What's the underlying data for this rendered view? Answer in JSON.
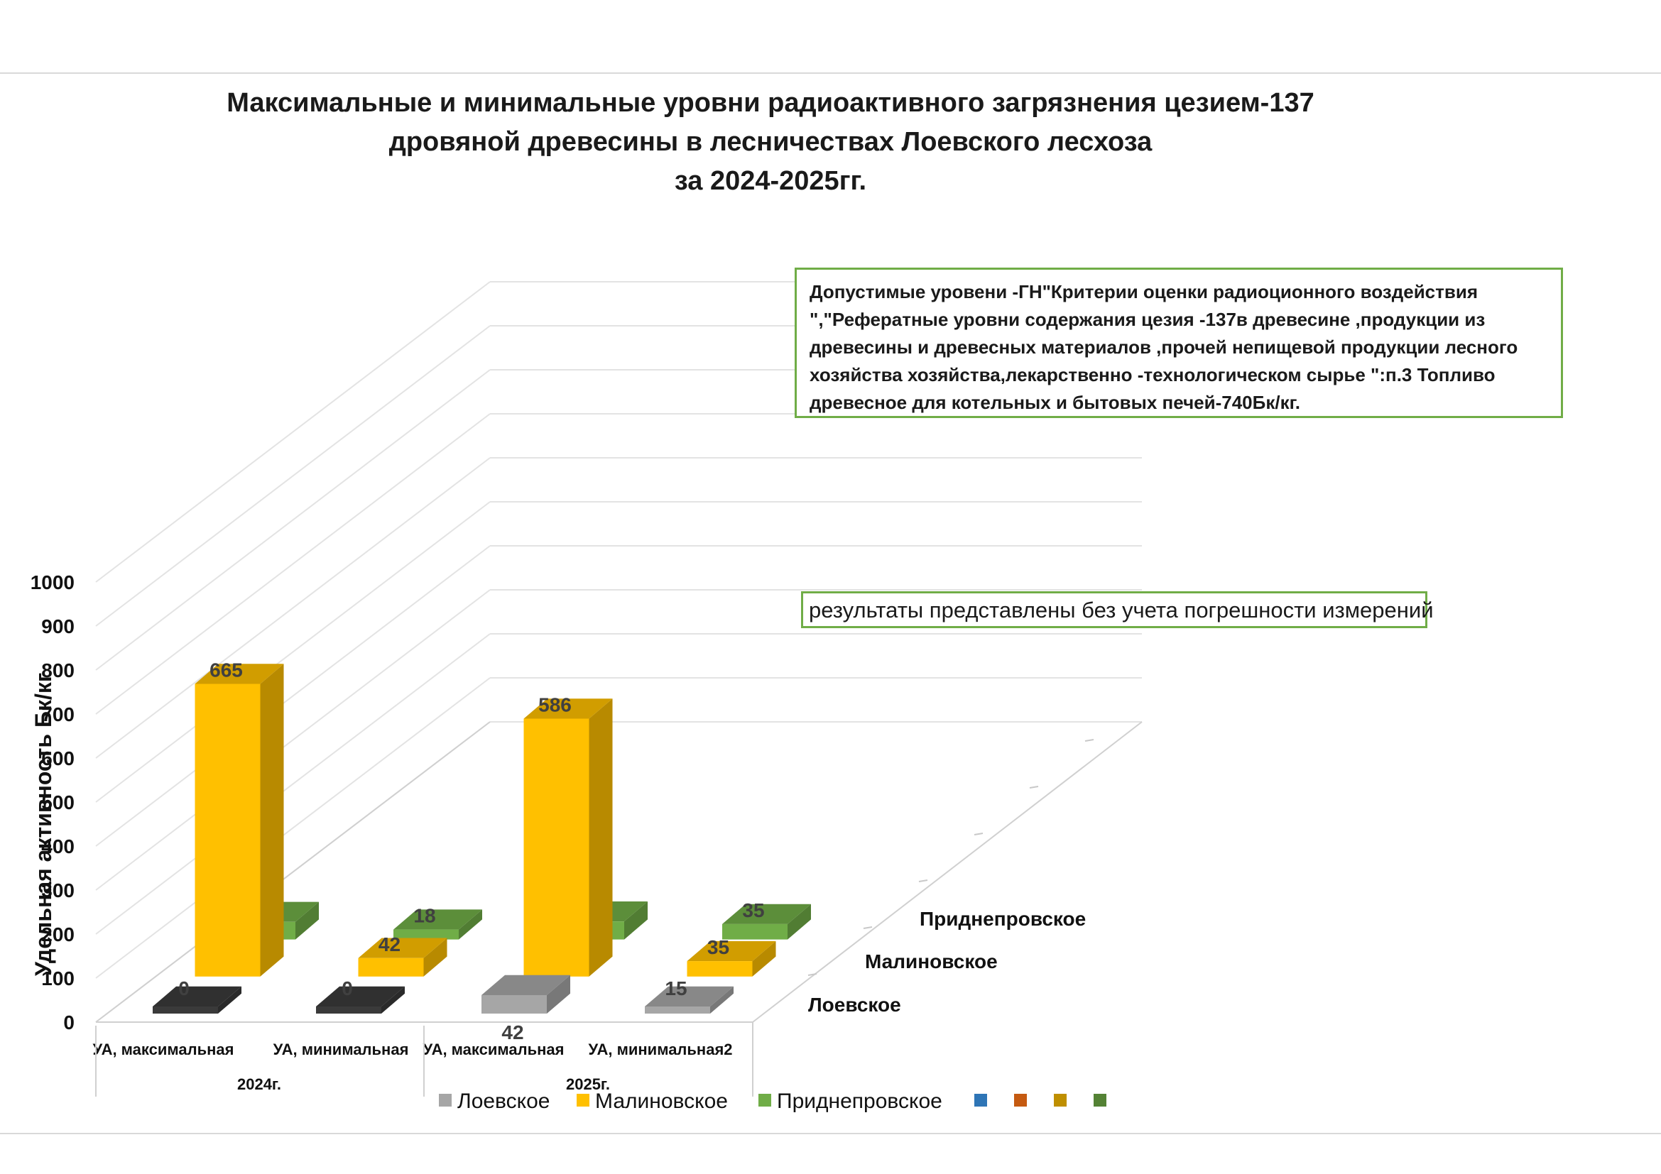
{
  "title_lines": [
    "Максимальные и минимальные уровни радиоактивного загрязнения цезием-137",
    "дровяной древесины в лесничествах Лоевского лесхоза",
    "за 2024-2025гг."
  ],
  "note": "Допустимые  уровени -ГН\"Критерии оценки радиоционного  воздействия \",\"Реферат­ные уровни содержания цезия -137в древесине ,продукции из древесины и древесных материалов ,прочей непищевой продукции лесного хозяйства хозяйства,лекарственно -технологическом сырье \":п.3 Топливо древесное для котельных и бытовых печей-740Бк/кг.",
  "note_lines": [
    "Допустимые  уровени -ГН\"Критерии оценки радиоционного  воздействия",
    "\",\"Реферат­ные уровни содержания цезия -137в древесине ,продукции из",
    "древесины и древесных материалов ,прочей непищевой продукции лесного",
    "хозяйства хозяйства,лекарственно -технологическом сырье \":п.3 Топливо",
    "древесное для котельных и бытовых печей-740Бк/кг."
  ],
  "results_note": "результаты представлены без учета погрешности измерений",
  "chart_data": {
    "type": "bar",
    "subtype": "3d-column",
    "ylabel": "Удельная активность Бк/кг",
    "ylim": [
      0,
      1000
    ],
    "yticks": [
      "0",
      "100",
      "200",
      "300",
      "400",
      "500",
      "600",
      "700",
      "800",
      "900",
      "1000"
    ],
    "groups": [
      "2024г.",
      "2025г."
    ],
    "categories": [
      "УА, максимальная",
      "УА, минимальная",
      "УА, максимальная",
      "УА, минимальная2"
    ],
    "series_axis_labels": [
      "Лоевское",
      "Малиновское",
      "Приднепровское"
    ],
    "series": [
      {
        "name": "Лоевское",
        "values": [
          0,
          0,
          42,
          15
        ],
        "colors": [
          "#3a3a3a",
          "#3a3a3a",
          "#a6a6a6",
          "#a6a6a6"
        ]
      },
      {
        "name": "Малиновское",
        "values": [
          665,
          42,
          586,
          35
        ],
        "color": "#ffc000"
      },
      {
        "name": "Приднепровское",
        "values": [
          40,
          18,
          41,
          35
        ],
        "color": "#70ad47"
      }
    ],
    "data_labels": [
      [
        "0",
        "0",
        "42",
        "15"
      ],
      [
        "665",
        "42",
        "586",
        "35"
      ],
      [
        "40",
        "18",
        "41",
        "35"
      ]
    ],
    "legend": {
      "position": "bottom",
      "entries": [
        "Лоевское",
        "Малиновское",
        "Приднепровское",
        "",
        "",
        "",
        ""
      ],
      "colors": [
        "#a6a6a6",
        "#ffc000",
        "#70ad47",
        "#2e75b6",
        "#c55a11",
        "#bf8f00",
        "#548235"
      ]
    }
  }
}
